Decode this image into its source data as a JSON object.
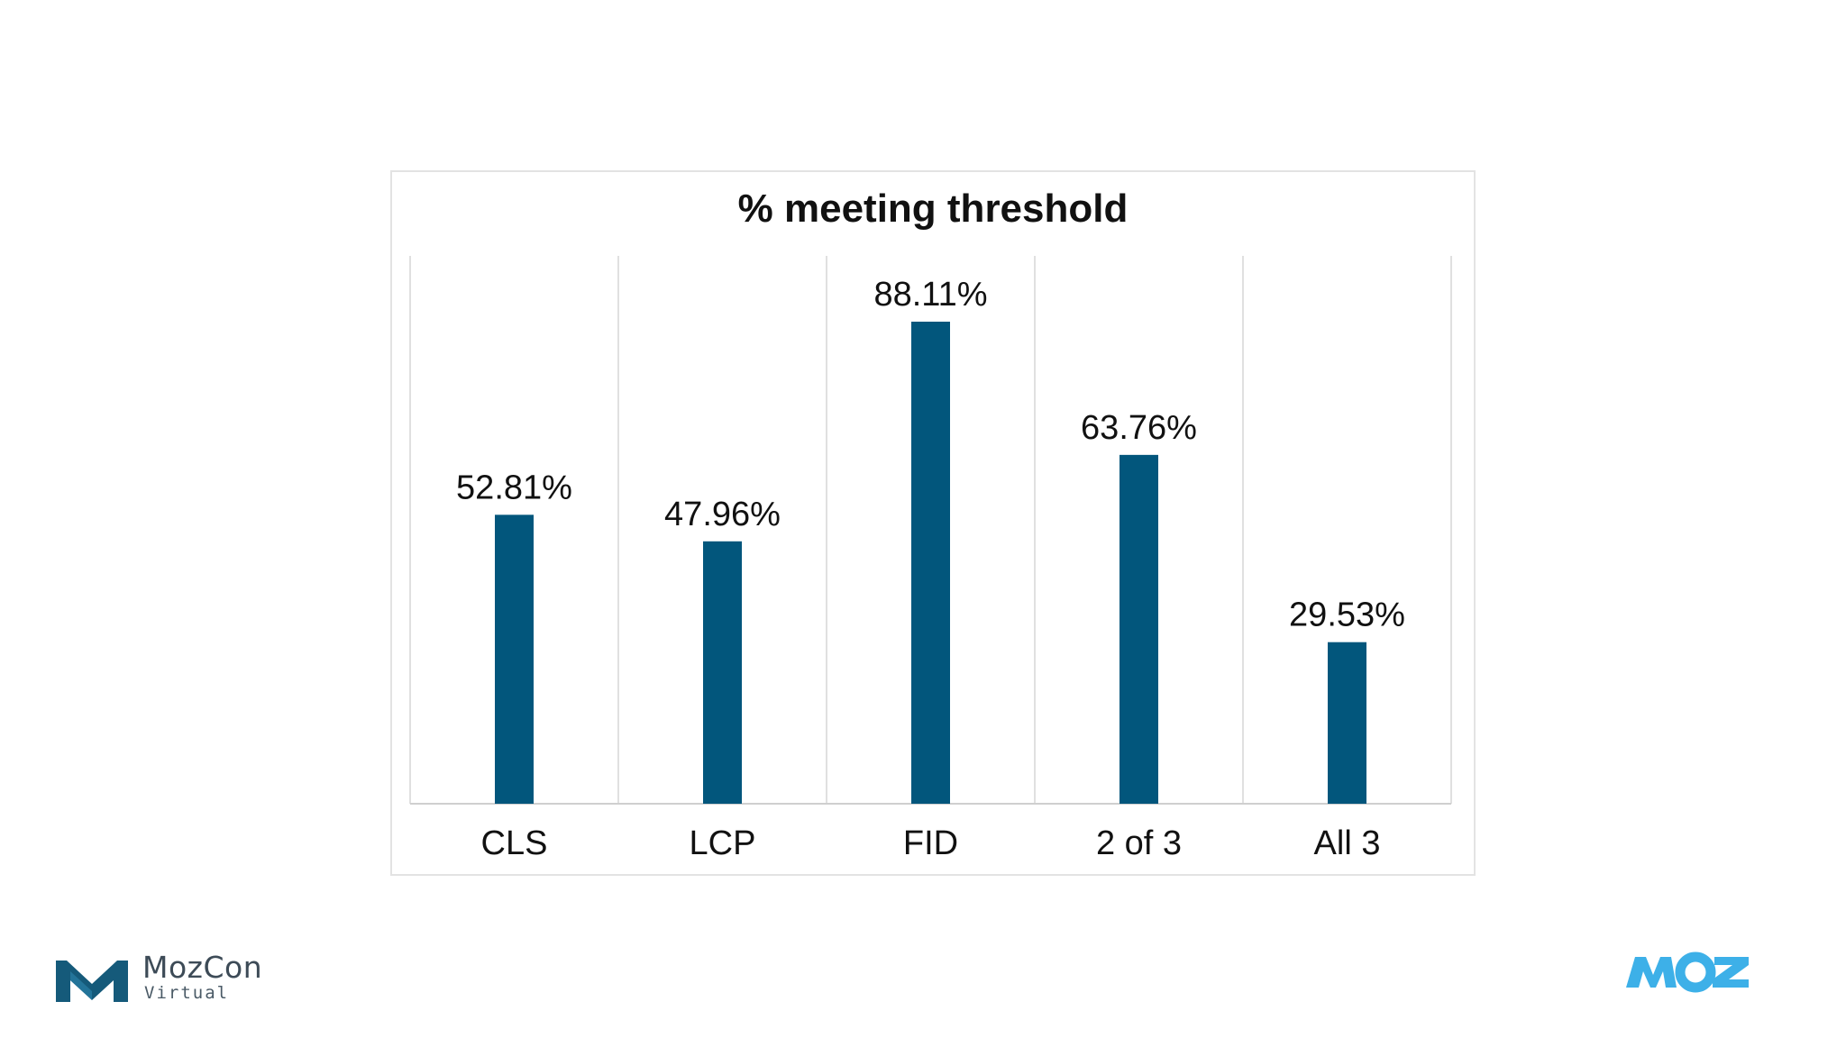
{
  "chart_data": {
    "type": "bar",
    "title": "% meeting threshold",
    "xlabel": "",
    "ylabel": "",
    "ylim": [
      0,
      100
    ],
    "categories": [
      "CLS",
      "LCP",
      "FID",
      "2 of 3",
      "All 3"
    ],
    "values": [
      52.81,
      47.96,
      88.11,
      63.76,
      29.53
    ],
    "data_labels": [
      "52.81%",
      "47.96%",
      "88.11%",
      "63.76%",
      "29.53%"
    ],
    "grid": "vertical category separators",
    "bar_color": "#02567c"
  },
  "footer": {
    "mozcon_name": "MozCon",
    "mozcon_sub": "Virtual",
    "moz_logo_icon": "moz-wordmark",
    "colors": {
      "mozcon_mark": "#155a7a",
      "moz_logo": "#3db0e8"
    }
  }
}
